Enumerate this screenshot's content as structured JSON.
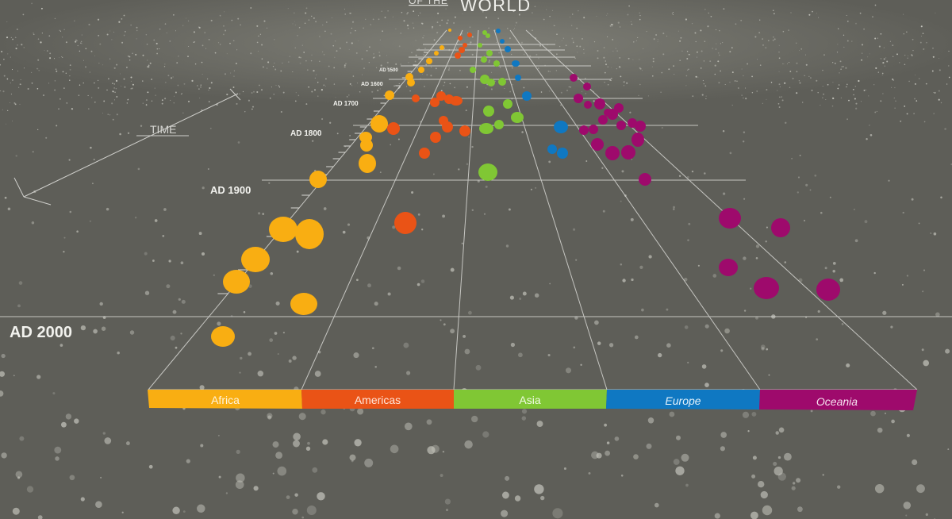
{
  "header": {
    "title_small": "OF THE",
    "title_large": "WORLD"
  },
  "axis": {
    "time_label": "TIME",
    "era_labels": [
      "AD 1500",
      "AD 1600",
      "AD 1700",
      "AD 1800",
      "AD 1900",
      "AD 2000"
    ]
  },
  "regions": [
    {
      "label": "Africa",
      "color": "#f9ae12",
      "italic": false
    },
    {
      "label": "Americas",
      "color": "#ea5316",
      "italic": false
    },
    {
      "label": "Asia",
      "color": "#80c734",
      "italic": false
    },
    {
      "label": "Europe",
      "color": "#0f78c2",
      "italic": true
    },
    {
      "label": "Oceania",
      "color": "#9e0a6c",
      "italic": true
    }
  ],
  "colors": {
    "background": "#5e5e58",
    "grid": "#d8d8d4"
  }
}
